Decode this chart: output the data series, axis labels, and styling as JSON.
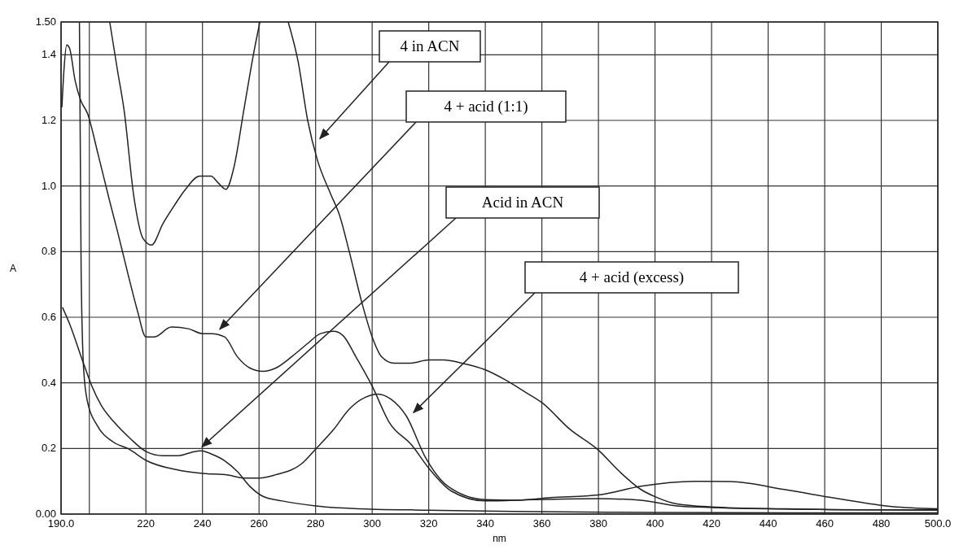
{
  "chart_data": {
    "type": "line",
    "xlabel": "nm",
    "ylabel": "A",
    "xlim": [
      190,
      500
    ],
    "ylim": [
      0,
      1.5
    ],
    "xticks": [
      {
        "value": 190,
        "label": "190.0"
      },
      {
        "value": 200,
        "label": null
      },
      220,
      240,
      260,
      280,
      300,
      320,
      340,
      360,
      380,
      400,
      420,
      440,
      460,
      480,
      {
        "value": 500,
        "label": "500.0"
      }
    ],
    "yticks": [
      {
        "value": 0,
        "label": "0.00"
      },
      0.2,
      0.4,
      0.6,
      0.8,
      {
        "value": 1,
        "label": "1.0"
      },
      1.2,
      1.4,
      {
        "value": 1.5,
        "label": "1.50"
      }
    ],
    "grid": true,
    "marker": "none",
    "line_style": "solid",
    "series": [
      {
        "name": "4 in ACN",
        "color": "#222222",
        "x": [
          207.2,
          210,
          212.3,
          215.7,
          219,
          222,
          226,
          230,
          234,
          239,
          243,
          245.5,
          248.3,
          251.2,
          254.6,
          258,
          260.3,
          null,
          270.3,
          273.8,
          277.2,
          280.6,
          285.1,
          288.5,
          291.9,
          296.5,
          300,
          303.3,
          307.8,
          313.5,
          320,
          325.3,
          331.7,
          339.9,
          346.9,
          354.5,
          360,
          369.7,
          380,
          387.4,
          395,
          400,
          407.7,
          420,
          445.7,
          471,
          500
        ],
        "values": [
          1.5,
          1.35,
          1.23,
          0.97,
          0.84,
          0.82,
          0.885,
          0.94,
          0.99,
          1.03,
          1.03,
          1.01,
          0.99,
          1.06,
          1.23,
          1.4,
          1.5,
          null,
          1.5,
          1.38,
          1.2,
          1.08,
          0.98,
          0.91,
          0.8,
          0.64,
          0.54,
          0.48,
          0.46,
          0.46,
          0.47,
          0.47,
          0.46,
          0.44,
          0.41,
          0.37,
          0.34,
          0.26,
          0.195,
          0.13,
          0.075,
          0.053,
          0.031,
          0.022,
          0.016,
          0.013,
          0.013
        ]
      },
      {
        "name": "4 + acid (1:1)",
        "color": "#222222",
        "x": [
          190.3,
          191,
          192,
          193,
          195,
          197,
          199.4,
          203,
          207,
          210,
          214,
          217,
          220,
          223,
          229,
          235,
          240,
          243.2,
          247.8,
          252.3,
          256.8,
          261.4,
          265.9,
          271.6,
          277.2,
          281.7,
          286.3,
          289.7,
          294.2,
          300,
          306,
          314,
          320,
          328,
          340,
          357,
          380,
          395,
          407.7,
          420,
          458,
          500
        ],
        "values": [
          1.24,
          1.35,
          1.43,
          1.42,
          1.32,
          1.26,
          1.22,
          1.1,
          0.96,
          0.86,
          0.72,
          0.62,
          0.54,
          0.54,
          0.57,
          0.565,
          0.55,
          0.55,
          0.54,
          0.48,
          0.445,
          0.435,
          0.445,
          0.48,
          0.52,
          0.55,
          0.557,
          0.544,
          0.48,
          0.39,
          0.28,
          0.21,
          0.14,
          0.07,
          0.04,
          0.044,
          0.047,
          0.042,
          0.025,
          0.02,
          0.014,
          0.012
        ]
      },
      {
        "name": "Acid in ACN",
        "color": "#222222",
        "x": [
          190.5,
          193,
          197.5,
          200.9,
          204.3,
          208.8,
          214.5,
          220.2,
          225.9,
          231.5,
          236,
          239.5,
          243.2,
          247.8,
          252.3,
          256.8,
          261.4,
          268.2,
          280,
          300,
          320,
          350,
          400,
          450,
          500
        ],
        "values": [
          0.63,
          0.58,
          0.47,
          0.39,
          0.33,
          0.28,
          0.23,
          0.19,
          0.178,
          0.178,
          0.188,
          0.193,
          0.183,
          0.163,
          0.13,
          0.084,
          0.054,
          0.04,
          0.025,
          0.015,
          0.012,
          0.008,
          0.005,
          0.004,
          0.004
        ]
      },
      {
        "name": "4 + acid (excess)",
        "color": "#222222",
        "x": [
          196.5,
          197.1,
          198,
          199.4,
          202.8,
          208.4,
          214,
          220.2,
          231.5,
          240,
          249,
          254.6,
          260.2,
          265.9,
          275,
          280,
          286.3,
          291.9,
          297.6,
          302,
          306.7,
          312,
          319,
          326.6,
          340,
          350.7,
          363,
          380,
          395,
          414,
          426.7,
          445.7,
          464.7,
          483.7,
          500
        ],
        "values": [
          1.5,
          0.74,
          0.44,
          0.34,
          0.27,
          0.22,
          0.198,
          0.163,
          0.134,
          0.124,
          0.119,
          0.11,
          0.11,
          0.12,
          0.153,
          0.198,
          0.257,
          0.32,
          0.356,
          0.366,
          0.35,
          0.3,
          0.17,
          0.086,
          0.044,
          0.042,
          0.05,
          0.058,
          0.085,
          0.1,
          0.099,
          0.075,
          0.047,
          0.023,
          0.016
        ]
      }
    ]
  }
}
